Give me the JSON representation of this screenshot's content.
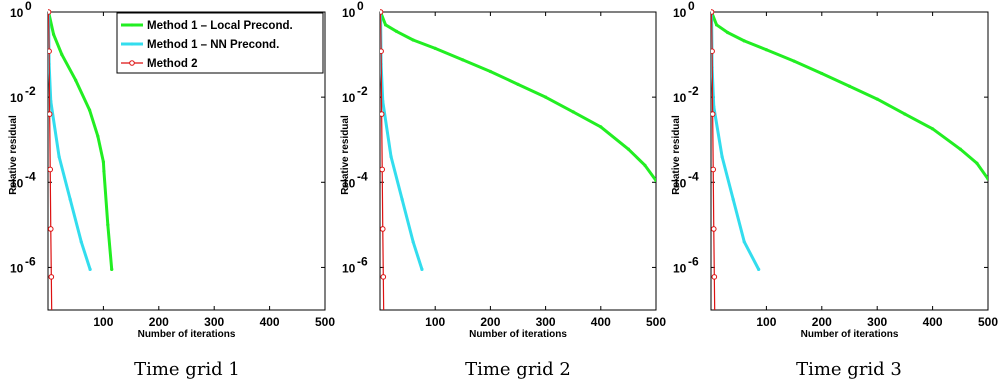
{
  "chart_data": [
    {
      "type": "line",
      "caption": "Time grid 1",
      "xlabel": "Number of iterations",
      "ylabel": "Relative residual",
      "xlim": [
        0,
        500
      ],
      "ylim": [
        1e-07,
        1
      ],
      "yscale": "log",
      "xticks": [
        "100",
        "200",
        "300",
        "400",
        "500"
      ],
      "yticks": [
        {
          "base": "10",
          "exp": "0",
          "value": 1
        },
        {
          "base": "10",
          "exp": "-2",
          "value": 0.01
        },
        {
          "base": "10",
          "exp": "-4",
          "value": 0.0001
        },
        {
          "base": "10",
          "exp": "-6",
          "value": 1e-06
        }
      ],
      "legend": {
        "position": "top-right"
      },
      "series": [
        {
          "name": "Method 1 – Local Precond.",
          "color": "#22ee22",
          "marker": "dot",
          "x": [
            1,
            10,
            25,
            50,
            75,
            90,
            100,
            101,
            108,
            115
          ],
          "y": [
            1,
            0.3,
            0.1,
            0.025,
            0.005,
            0.0012,
            0.0003,
            0.00018,
            1e-05,
            9e-07
          ]
        },
        {
          "name": "Method 1 – NN Precond.",
          "color": "#33ddee",
          "marker": "dot",
          "x": [
            1,
            2,
            5,
            20,
            40,
            60,
            76
          ],
          "y": [
            1,
            0.06,
            0.008,
            0.0004,
            4e-05,
            4e-06,
            9e-07
          ]
        },
        {
          "name": "Method 2",
          "color": "#dd1111",
          "marker": "circle",
          "x": [
            1,
            2,
            3,
            4,
            5,
            6,
            7
          ],
          "y": [
            1,
            0.12,
            0.004,
            0.0002,
            8e-06,
            6e-07,
            4e-08
          ]
        }
      ]
    },
    {
      "type": "line",
      "caption": "Time grid 2",
      "xlabel": "Number of iterations",
      "ylabel": "Relative residual",
      "xlim": [
        0,
        500
      ],
      "ylim": [
        1e-07,
        1
      ],
      "yscale": "log",
      "xticks": [
        "100",
        "200",
        "300",
        "400",
        "500"
      ],
      "yticks": [
        {
          "base": "10",
          "exp": "0",
          "value": 1
        },
        {
          "base": "10",
          "exp": "-2",
          "value": 0.01
        },
        {
          "base": "10",
          "exp": "-4",
          "value": 0.0001
        },
        {
          "base": "10",
          "exp": "-6",
          "value": 1e-06
        }
      ],
      "series": [
        {
          "name": "Method 1 – Local Precond.",
          "color": "#22ee22",
          "marker": "dot",
          "x": [
            1,
            10,
            30,
            60,
            100,
            150,
            200,
            250,
            300,
            350,
            400,
            450,
            480,
            500
          ],
          "y": [
            1,
            0.5,
            0.35,
            0.22,
            0.14,
            0.075,
            0.04,
            0.02,
            0.01,
            0.0045,
            0.002,
            0.0006,
            0.00025,
            0.00011
          ]
        },
        {
          "name": "Method 1 – NN Precond.",
          "color": "#33ddee",
          "marker": "dot",
          "x": [
            1,
            2,
            5,
            20,
            40,
            60,
            76
          ],
          "y": [
            1,
            0.06,
            0.008,
            0.0004,
            4e-05,
            4e-06,
            9e-07
          ]
        },
        {
          "name": "Method 2",
          "color": "#dd1111",
          "marker": "circle",
          "x": [
            1,
            2,
            3,
            4,
            5,
            6,
            7
          ],
          "y": [
            1,
            0.12,
            0.004,
            0.0002,
            8e-06,
            6e-07,
            4e-08
          ]
        }
      ]
    },
    {
      "type": "line",
      "caption": "Time grid 3",
      "xlabel": "Number of iterations",
      "ylabel": "Relative residual",
      "xlim": [
        0,
        500
      ],
      "ylim": [
        1e-07,
        1
      ],
      "yscale": "log",
      "xticks": [
        "100",
        "200",
        "300",
        "400",
        "500"
      ],
      "yticks": [
        {
          "base": "10",
          "exp": "0",
          "value": 1
        },
        {
          "base": "10",
          "exp": "-2",
          "value": 0.01
        },
        {
          "base": "10",
          "exp": "-4",
          "value": 0.0001
        },
        {
          "base": "10",
          "exp": "-6",
          "value": 1e-06
        }
      ],
      "series": [
        {
          "name": "Method 1 – Local Precond.",
          "color": "#22ee22",
          "marker": "dot",
          "x": [
            1,
            10,
            30,
            60,
            100,
            150,
            200,
            250,
            300,
            350,
            400,
            450,
            480,
            500
          ],
          "y": [
            1,
            0.5,
            0.33,
            0.21,
            0.13,
            0.07,
            0.036,
            0.018,
            0.009,
            0.004,
            0.0018,
            0.0006,
            0.00028,
            0.00012
          ]
        },
        {
          "name": "Method 1 – NN Precond.",
          "color": "#33ddee",
          "marker": "dot",
          "x": [
            1,
            2,
            5,
            20,
            40,
            60,
            86
          ],
          "y": [
            1,
            0.05,
            0.006,
            0.0004,
            4e-05,
            4e-06,
            9e-07
          ]
        },
        {
          "name": "Method 2",
          "color": "#dd1111",
          "marker": "circle",
          "x": [
            1,
            2,
            3,
            4,
            5,
            6,
            7
          ],
          "y": [
            1,
            0.12,
            0.004,
            0.0002,
            8e-06,
            6e-07,
            4e-08
          ]
        }
      ]
    }
  ]
}
